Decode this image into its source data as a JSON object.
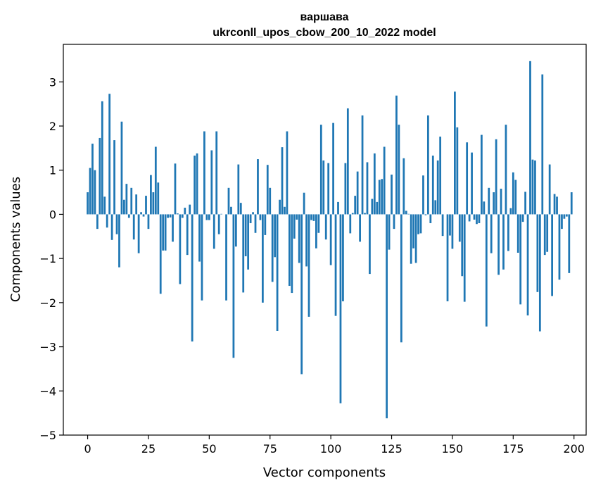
{
  "chart_data": {
    "type": "bar",
    "title": "варшава",
    "subtitle": "ukrconll_upos_cbow_200_10_2022 model",
    "xlabel": "Vector components",
    "ylabel": "Components values",
    "xlim": [
      -10,
      205
    ],
    "ylim": [
      -5.0,
      3.85
    ],
    "xticks": [
      0,
      25,
      50,
      75,
      100,
      125,
      150,
      175,
      200
    ],
    "xtick_labels": [
      "0",
      "25",
      "50",
      "75",
      "100",
      "125",
      "150",
      "175",
      "200"
    ],
    "yticks": [
      -5,
      -4,
      -3,
      -2,
      -1,
      0,
      1,
      2,
      3
    ],
    "ytick_labels": [
      "−5",
      "−4",
      "−3",
      "−2",
      "−1",
      "0",
      "1",
      "2",
      "3"
    ],
    "grid": false,
    "legend": "none",
    "bar_color": "#1f77b4",
    "x": [
      0,
      1,
      2,
      3,
      4,
      5,
      6,
      7,
      8,
      9,
      10,
      11,
      12,
      13,
      14,
      15,
      16,
      17,
      18,
      19,
      20,
      21,
      22,
      23,
      24,
      25,
      26,
      27,
      28,
      29,
      30,
      31,
      32,
      33,
      34,
      35,
      36,
      37,
      38,
      39,
      40,
      41,
      42,
      43,
      44,
      45,
      46,
      47,
      48,
      49,
      50,
      51,
      52,
      53,
      54,
      55,
      56,
      57,
      58,
      59,
      60,
      61,
      62,
      63,
      64,
      65,
      66,
      67,
      68,
      69,
      70,
      71,
      72,
      73,
      74,
      75,
      76,
      77,
      78,
      79,
      80,
      81,
      82,
      83,
      84,
      85,
      86,
      87,
      88,
      89,
      90,
      91,
      92,
      93,
      94,
      95,
      96,
      97,
      98,
      99,
      100,
      101,
      102,
      103,
      104,
      105,
      106,
      107,
      108,
      109,
      110,
      111,
      112,
      113,
      114,
      115,
      116,
      117,
      118,
      119,
      120,
      121,
      122,
      123,
      124,
      125,
      126,
      127,
      128,
      129,
      130,
      131,
      132,
      133,
      134,
      135,
      136,
      137,
      138,
      139,
      140,
      141,
      142,
      143,
      144,
      145,
      146,
      147,
      148,
      149,
      150,
      151,
      152,
      153,
      154,
      155,
      156,
      157,
      158,
      159,
      160,
      161,
      162,
      163,
      164,
      165,
      166,
      167,
      168,
      169,
      170,
      171,
      172,
      173,
      174,
      175,
      176,
      177,
      178,
      179,
      180,
      181,
      182,
      183,
      184,
      185,
      186,
      187,
      188,
      189,
      190,
      191,
      192,
      193,
      194,
      195,
      196,
      197,
      198,
      199
    ],
    "values": [
      0.5,
      1.05,
      1.6,
      1.0,
      -0.33,
      1.73,
      2.56,
      0.4,
      -0.3,
      2.73,
      -0.58,
      1.68,
      -0.45,
      -1.2,
      2.1,
      0.33,
      0.69,
      -0.08,
      0.6,
      -0.57,
      0.45,
      -0.88,
      0.05,
      -0.05,
      0.42,
      -0.33,
      0.89,
      0.5,
      1.53,
      0.72,
      -1.8,
      -0.82,
      -0.82,
      -0.08,
      -0.07,
      -0.62,
      1.15,
      0.02,
      -1.58,
      -0.08,
      0.15,
      -0.92,
      0.22,
      -2.88,
      1.33,
      1.38,
      -1.07,
      -1.95,
      1.88,
      -0.13,
      -0.13,
      1.45,
      -0.78,
      1.88,
      -0.45,
      0.01,
      0.0,
      -1.95,
      0.6,
      0.17,
      -3.25,
      -0.73,
      1.13,
      0.26,
      -1.77,
      -0.95,
      -1.25,
      -0.2,
      0.05,
      -0.42,
      1.25,
      -0.13,
      -2.0,
      -0.47,
      1.12,
      0.6,
      -1.53,
      -0.97,
      -2.64,
      0.33,
      1.52,
      0.17,
      1.88,
      -1.62,
      -1.78,
      -0.55,
      -0.12,
      -1.1,
      -3.62,
      0.49,
      -1.18,
      -2.32,
      -0.13,
      -0.15,
      -0.77,
      -0.42,
      2.03,
      1.22,
      -0.57,
      1.16,
      -1.15,
      2.07,
      -2.3,
      0.28,
      -4.28,
      -1.97,
      1.16,
      2.4,
      -0.43,
      0.03,
      0.42,
      0.97,
      -0.62,
      2.24,
      0.03,
      1.18,
      -1.35,
      0.35,
      1.38,
      0.28,
      0.78,
      0.8,
      1.53,
      -4.62,
      -0.8,
      0.9,
      -0.33,
      2.69,
      2.03,
      -2.9,
      1.27,
      0.08,
      0.01,
      -1.12,
      -0.77,
      -1.1,
      -0.45,
      -0.43,
      0.88,
      -0.02,
      2.24,
      -0.2,
      1.33,
      0.32,
      1.22,
      1.76,
      -0.49,
      0.0,
      -1.97,
      -0.48,
      -0.78,
      2.78,
      1.97,
      -0.62,
      -1.4,
      -1.98,
      1.63,
      -0.16,
      1.4,
      -0.12,
      -0.22,
      -0.2,
      1.8,
      0.29,
      -2.54,
      0.6,
      -0.88,
      0.5,
      1.7,
      -1.37,
      0.58,
      -1.25,
      2.03,
      -0.83,
      0.14,
      0.95,
      0.78,
      -0.87,
      -2.04,
      -0.17,
      0.51,
      -2.29,
      3.47,
      1.24,
      1.22,
      -1.76,
      -2.65,
      3.17,
      -0.92,
      -0.85,
      1.13,
      -1.85,
      0.46,
      0.4,
      -1.48,
      -0.33,
      -0.1,
      -0.05,
      -1.33,
      0.5
    ]
  }
}
